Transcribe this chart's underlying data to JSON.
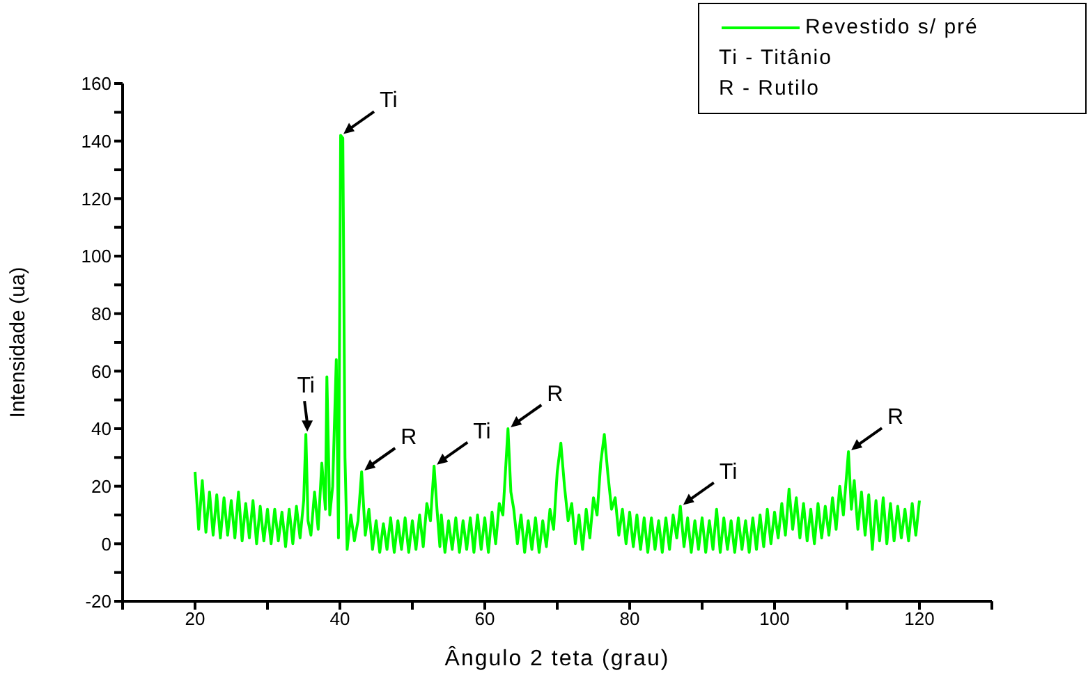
{
  "chart_data": {
    "type": "line",
    "xlabel": "Ângulo 2 teta (grau)",
    "ylabel": "Intensidade (ua)",
    "x": [
      20,
      20.5,
      21,
      21.5,
      22,
      22.5,
      23,
      23.5,
      24,
      24.5,
      25,
      25.5,
      26,
      26.5,
      27,
      27.5,
      28,
      28.5,
      29,
      29.5,
      30,
      30.5,
      31,
      31.5,
      32,
      32.5,
      33,
      33.5,
      34,
      34.5,
      35,
      35.3,
      35.6,
      36,
      36.5,
      37,
      37.5,
      38,
      38.2,
      38.6,
      39,
      39.5,
      39.8,
      40.1,
      40.4,
      40.7,
      41,
      41.5,
      42,
      42.5,
      43,
      43.5,
      44,
      44.5,
      45,
      45.5,
      46,
      46.5,
      47,
      47.5,
      48,
      48.5,
      49,
      49.5,
      50,
      50.5,
      51,
      51.5,
      52,
      52.5,
      53,
      53.4,
      53.8,
      54,
      54.5,
      55,
      55.5,
      56,
      56.5,
      57,
      57.5,
      58,
      58.5,
      59,
      59.5,
      60,
      60.5,
      61,
      61.5,
      62,
      62.5,
      63.2,
      63.6,
      64,
      64.5,
      65,
      65.5,
      66,
      66.5,
      67,
      67.5,
      68,
      68.5,
      69,
      69.5,
      70,
      70.5,
      71,
      71.5,
      72,
      72.5,
      73,
      73.5,
      74,
      74.5,
      75,
      75.5,
      76,
      76.5,
      77,
      77.5,
      78,
      78.5,
      79,
      79.5,
      80,
      80.5,
      81,
      81.5,
      82,
      82.5,
      83,
      83.5,
      84,
      84.5,
      85,
      85.5,
      86,
      86.5,
      87,
      87.5,
      88,
      88.5,
      89,
      89.5,
      90,
      90.5,
      91,
      91.5,
      92,
      92.5,
      93,
      93.5,
      94,
      94.5,
      95,
      95.5,
      96,
      96.5,
      97,
      97.5,
      98,
      98.5,
      99,
      99.5,
      100,
      100.5,
      101,
      101.5,
      102,
      102.5,
      103,
      103.5,
      104,
      104.5,
      105,
      105.5,
      106,
      106.5,
      107,
      107.5,
      108,
      108.5,
      109,
      109.5,
      110.2,
      110.6,
      111,
      111.5,
      112,
      112.5,
      113,
      113.5,
      114,
      114.5,
      115,
      115.5,
      116,
      116.5,
      117,
      117.5,
      118,
      118.5,
      119,
      119.5,
      120
    ],
    "series": [
      {
        "name": "Revestido s/ pré",
        "color": "#00ff00",
        "values": [
          25,
          5,
          22,
          4,
          18,
          3,
          17,
          2,
          16,
          3,
          15,
          2,
          18,
          1,
          14,
          2,
          15,
          0,
          13,
          1,
          12,
          0,
          12,
          1,
          11,
          -1,
          12,
          0,
          13,
          2,
          15,
          38,
          8,
          3,
          18,
          5,
          28,
          12,
          58,
          10,
          20,
          64,
          2,
          142,
          141,
          30,
          -2,
          10,
          1,
          8,
          25,
          3,
          12,
          -2,
          8,
          -3,
          7,
          -2,
          9,
          -3,
          8,
          -2,
          9,
          -3,
          8,
          -2,
          10,
          -1,
          14,
          8,
          27,
          12,
          -1,
          10,
          -3,
          8,
          -2,
          9,
          -3,
          8,
          -2,
          9,
          -3,
          10,
          -2,
          9,
          -3,
          11,
          0,
          14,
          10,
          40,
          18,
          12,
          0,
          10,
          -3,
          8,
          -2,
          9,
          -3,
          8,
          -1,
          12,
          5,
          25,
          35,
          20,
          8,
          14,
          0,
          10,
          -2,
          12,
          2,
          16,
          10,
          28,
          38,
          24,
          12,
          16,
          3,
          12,
          0,
          11,
          -1,
          10,
          -2,
          9,
          -3,
          9,
          -2,
          8,
          -3,
          9,
          -2,
          10,
          2,
          13,
          -1,
          9,
          -3,
          8,
          -2,
          9,
          -3,
          8,
          -2,
          12,
          -3,
          9,
          -2,
          8,
          -3,
          9,
          -2,
          8,
          -3,
          9,
          -2,
          10,
          -1,
          12,
          0,
          11,
          2,
          14,
          3,
          19,
          5,
          16,
          2,
          14,
          1,
          12,
          0,
          14,
          2,
          13,
          3,
          16,
          5,
          20,
          10,
          32,
          12,
          22,
          5,
          18,
          3,
          17,
          -2,
          15,
          1,
          16,
          0,
          14,
          1,
          13,
          2,
          12,
          1,
          14,
          3,
          15
        ]
      }
    ],
    "xlim": [
      10,
      130
    ],
    "xticks": [
      {
        "value": 10,
        "label": null
      },
      20,
      {
        "value": 30,
        "label": null
      },
      40,
      {
        "value": 50,
        "label": null
      },
      60,
      {
        "value": 70,
        "label": null
      },
      80,
      {
        "value": 90,
        "label": null
      },
      100,
      {
        "value": 110,
        "label": null
      },
      120,
      {
        "value": 130,
        "label": null
      }
    ],
    "ylim": [
      -20,
      160
    ],
    "yticks": [
      -20,
      {
        "value": -10,
        "label": null
      },
      0,
      {
        "value": 10,
        "label": null
      },
      20,
      {
        "value": 30,
        "label": null
      },
      40,
      {
        "value": 50,
        "label": null
      },
      60,
      {
        "value": 70,
        "label": null
      },
      80,
      {
        "value": 90,
        "label": null
      },
      100,
      {
        "value": 110,
        "label": null
      },
      120,
      {
        "value": 130,
        "label": null
      },
      140,
      {
        "value": 150,
        "label": null
      },
      160
    ],
    "legend": "top right",
    "marker": "none",
    "line_style": "solid",
    "annotations": [
      "Ti - Titânio",
      "R - Rutilo",
      {
        "text": "Ti",
        "x": 40.1,
        "y": 142
      },
      {
        "text": "Ti",
        "x": 35.3,
        "y": 38
      },
      {
        "text": "R",
        "x": 43,
        "y": 25
      },
      {
        "text": "Ti",
        "x": 53,
        "y": 27
      },
      {
        "text": "R",
        "x": 63.2,
        "y": 40
      },
      {
        "text": "Ti",
        "x": 87,
        "y": 13
      },
      {
        "text": "R",
        "x": 110.2,
        "y": 32
      }
    ]
  }
}
